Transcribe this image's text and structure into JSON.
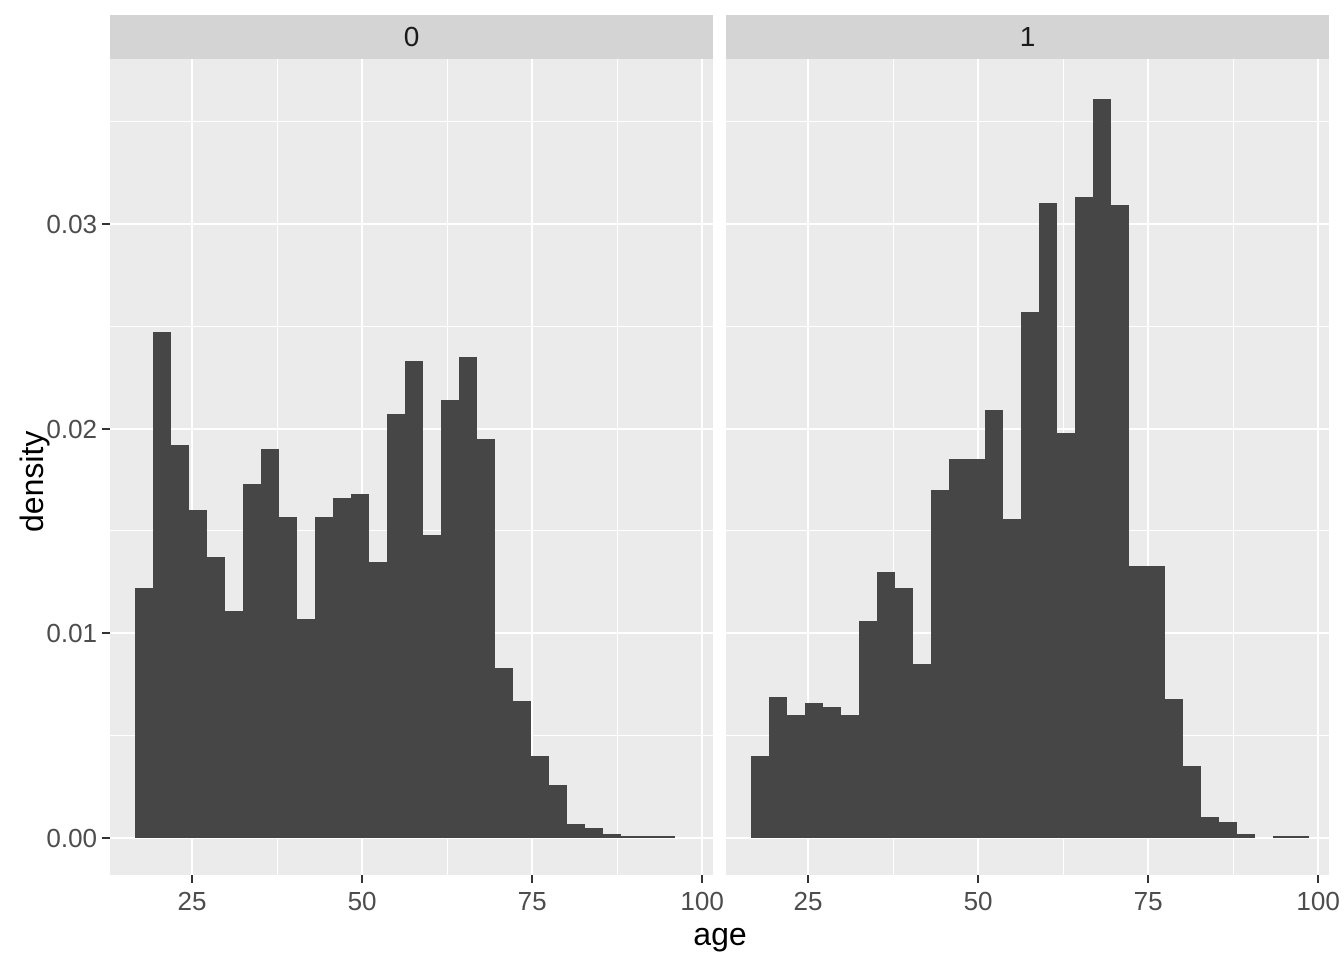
{
  "chart_data": {
    "type": "bar",
    "subtype": "faceted-histogram",
    "title": "",
    "xlabel": "age",
    "ylabel": "density",
    "x_ticks": [
      25,
      50,
      75,
      100
    ],
    "x_tick_labels": [
      "25",
      "50",
      "75",
      "100"
    ],
    "y_ticks": [
      0.0,
      0.01,
      0.02,
      0.03
    ],
    "y_tick_labels": [
      "0.00",
      "0.01",
      "0.02",
      "0.03"
    ],
    "x_minor_ticks": [
      37.5,
      62.5,
      87.5
    ],
    "y_minor_ticks": [
      0.005,
      0.015,
      0.025,
      0.035
    ],
    "x_domain": [
      12.94,
      101.6
    ],
    "y_domain": [
      -0.00181,
      0.03805
    ],
    "grid": "on",
    "legend": "none",
    "bin_start": 16.55,
    "bin_width": 2.65,
    "facets": [
      {
        "label": "0",
        "densities": [
          0.0122,
          0.0247,
          0.0192,
          0.016,
          0.0137,
          0.0111,
          0.0173,
          0.019,
          0.0157,
          0.0107,
          0.0157,
          0.0166,
          0.0168,
          0.0135,
          0.0207,
          0.0233,
          0.0148,
          0.0214,
          0.0235,
          0.0195,
          0.0083,
          0.0067,
          0.004,
          0.0026,
          0.0007,
          0.0005,
          0.0002,
          0.0001,
          0.0001,
          0.0001
        ]
      },
      {
        "label": "1",
        "densities": [
          0.004,
          0.0069,
          0.006,
          0.0066,
          0.0064,
          0.006,
          0.0106,
          0.013,
          0.0122,
          0.0085,
          0.017,
          0.0185,
          0.0185,
          0.0209,
          0.0156,
          0.0257,
          0.031,
          0.0198,
          0.0313,
          0.0361,
          0.0309,
          0.0133,
          0.0133,
          0.0068,
          0.0035,
          0.001,
          0.0008,
          0.0002,
          0.0,
          0.0001,
          0.0001
        ]
      }
    ],
    "colors": {
      "bar": "#464646",
      "panel_bg": "#EBEBEB",
      "strip_bg": "#D4D4D4",
      "grid": "#FFFFFF",
      "axis_text": "#4D4D4D",
      "axis_title": "#000000",
      "strip_text": "#1A1A1A",
      "tick_mark": "#333333"
    }
  }
}
